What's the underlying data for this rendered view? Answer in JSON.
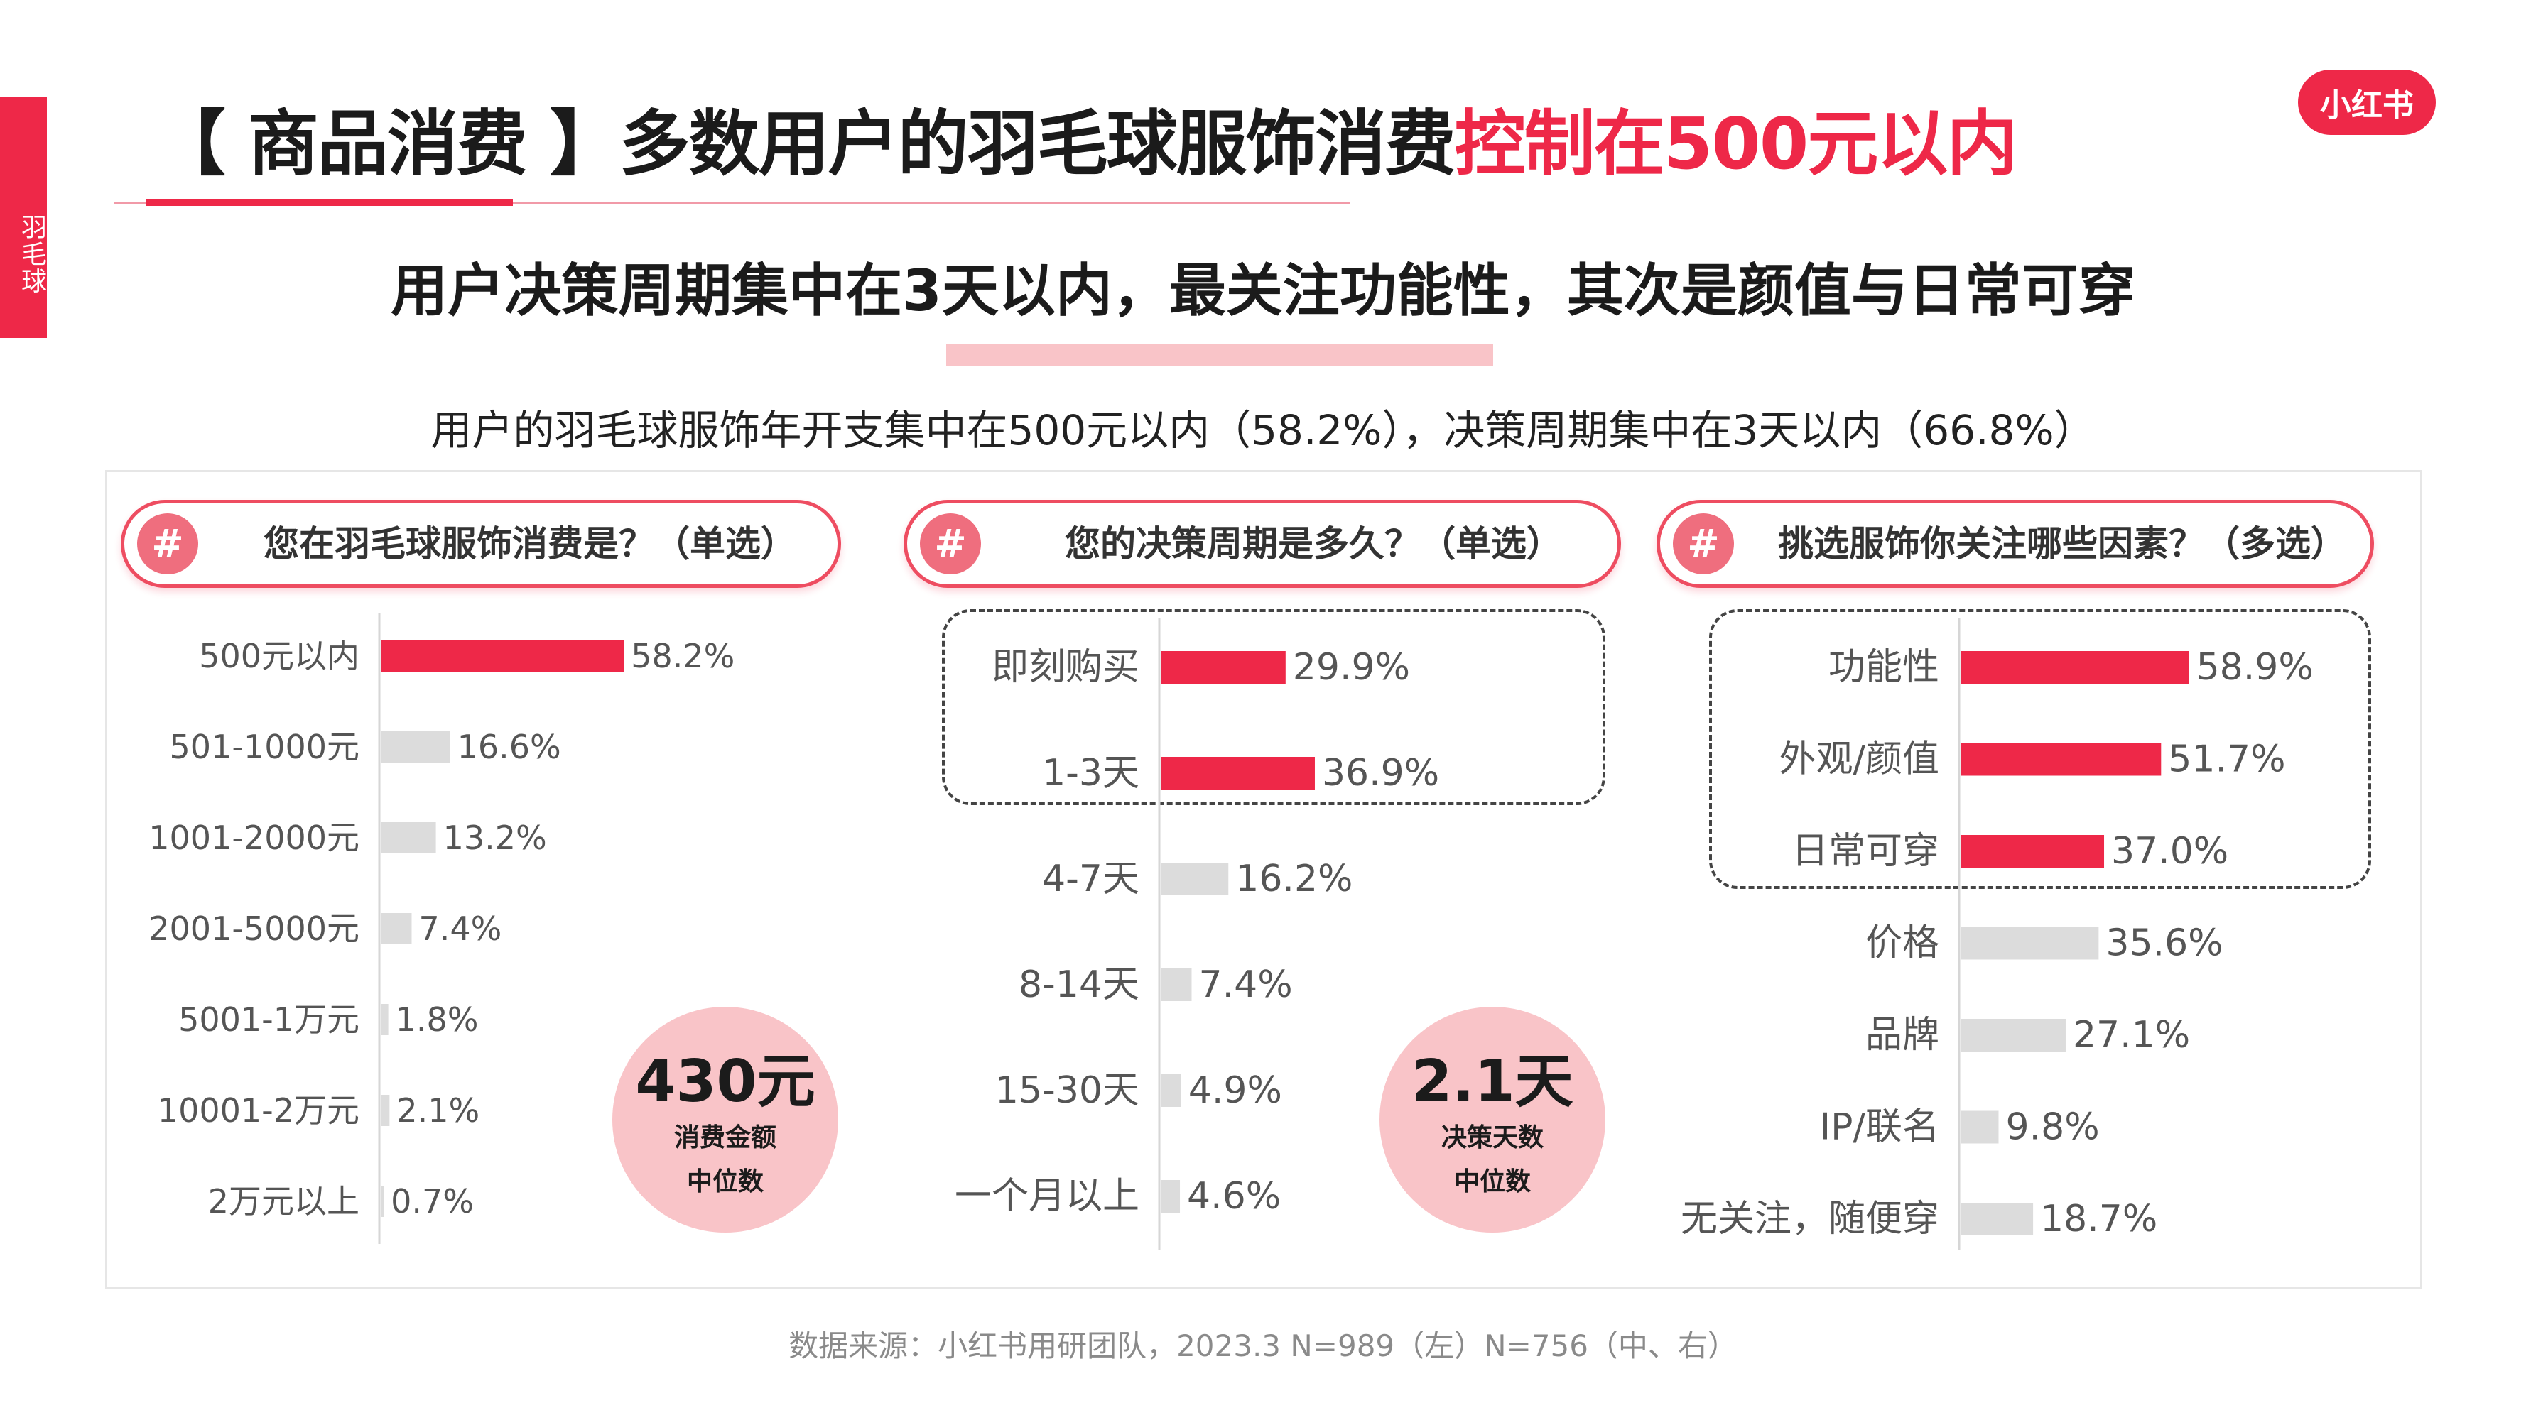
{
  "side_tab": "羽毛球",
  "logo": "小红书",
  "title": {
    "main": "【 商品消费 】多数用户的羽毛球服饰消费",
    "highlight": "控制在500元以内"
  },
  "subtitle": "用户决策周期集中在3天以内，最关注功能性，其次是颜值与日常可穿",
  "caption": "用户的羽毛球服饰年开支集中在500元以内（58.2%），决策周期集中在3天以内（66.8%）",
  "footer": "数据来源：小红书用研团队，2023.3 N=989（左）N=756（中、右）",
  "colors": {
    "accent": "#ee2848",
    "neutral_bar": "#dcdcdc",
    "circle": "#f9c4c8"
  },
  "questions": [
    {
      "badge": "#",
      "text": "您在羽毛球服饰消费是？（单选）"
    },
    {
      "badge": "#",
      "text": "您的决策周期是多久？（单选）"
    },
    {
      "badge": "#",
      "text": "挑选服饰你关注哪些因素？（多选）"
    }
  ],
  "highlights": [
    {
      "value": "430元",
      "line1": "消费金额",
      "line2": "中位数"
    },
    {
      "value": "2.1天",
      "line1": "决策天数",
      "line2": "中位数"
    }
  ],
  "chart_data": [
    {
      "type": "bar",
      "orientation": "horizontal",
      "question": "您在羽毛球服饰消费是？（单选）",
      "categories": [
        "500元以内",
        "501-1000元",
        "1001-2000元",
        "2001-5000元",
        "5001-1万元",
        "10001-2万元",
        "2万元以上"
      ],
      "values": [
        58.2,
        16.6,
        13.2,
        7.4,
        1.8,
        2.1,
        0.7
      ],
      "labels": [
        "58.2%",
        "16.6%",
        "13.2%",
        "7.4%",
        "1.8%",
        "2.1%",
        "0.7%"
      ],
      "highlighted": [
        true,
        false,
        false,
        false,
        false,
        false,
        false
      ],
      "unit": "%"
    },
    {
      "type": "bar",
      "orientation": "horizontal",
      "question": "您的决策周期是多久？（单选）",
      "categories": [
        "即刻购买",
        "1-3天",
        "4-7天",
        "8-14天",
        "15-30天",
        "一个月以上"
      ],
      "values": [
        29.9,
        36.9,
        16.2,
        7.4,
        4.9,
        4.6
      ],
      "labels": [
        "29.9%",
        "36.9%",
        "16.2%",
        "7.4%",
        "4.9%",
        "4.6%"
      ],
      "highlighted": [
        true,
        true,
        false,
        false,
        false,
        false
      ],
      "unit": "%"
    },
    {
      "type": "bar",
      "orientation": "horizontal",
      "question": "挑选服饰你关注哪些因素？（多选）",
      "categories": [
        "功能性",
        "外观/颜值",
        "日常可穿",
        "价格",
        "品牌",
        "IP/联名",
        "无关注，随便穿"
      ],
      "values": [
        58.9,
        51.7,
        37.0,
        35.6,
        27.1,
        9.8,
        18.7
      ],
      "labels": [
        "58.9%",
        "51.7%",
        "37.0%",
        "35.6%",
        "27.1%",
        "9.8%",
        "18.7%"
      ],
      "highlighted": [
        true,
        true,
        true,
        false,
        false,
        false,
        false
      ],
      "unit": "%"
    }
  ]
}
